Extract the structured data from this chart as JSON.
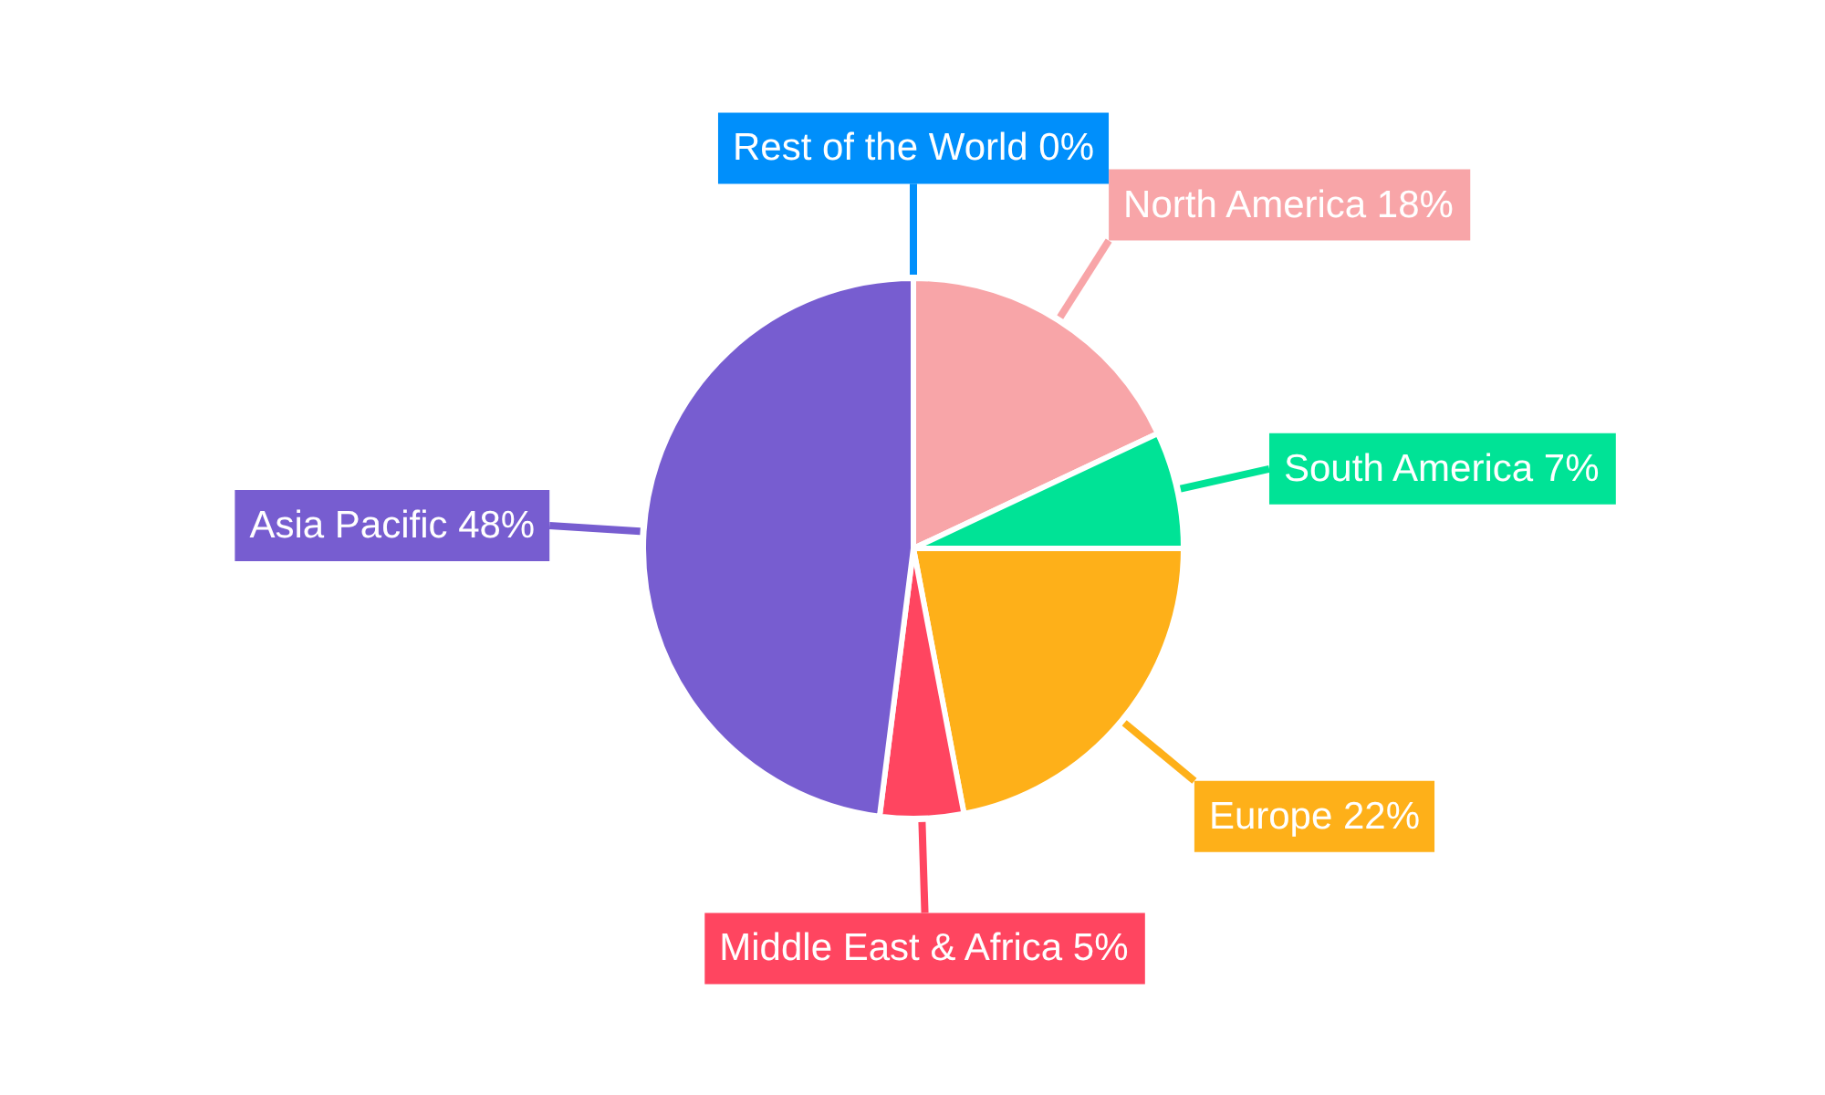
{
  "chart_data": {
    "type": "pie",
    "categories": [
      "North America",
      "South America",
      "Europe",
      "Middle East & Africa",
      "Asia Pacific",
      "Rest of the World"
    ],
    "values": [
      18,
      7,
      22,
      5,
      48,
      0
    ],
    "value_labels": [
      "18%",
      "7%",
      "22%",
      "5%",
      "48%",
      "0%"
    ],
    "colors": [
      "#f8a5a8",
      "#00e396",
      "#feb019",
      "#ff4560",
      "#775dd0",
      "#008ffb"
    ]
  }
}
